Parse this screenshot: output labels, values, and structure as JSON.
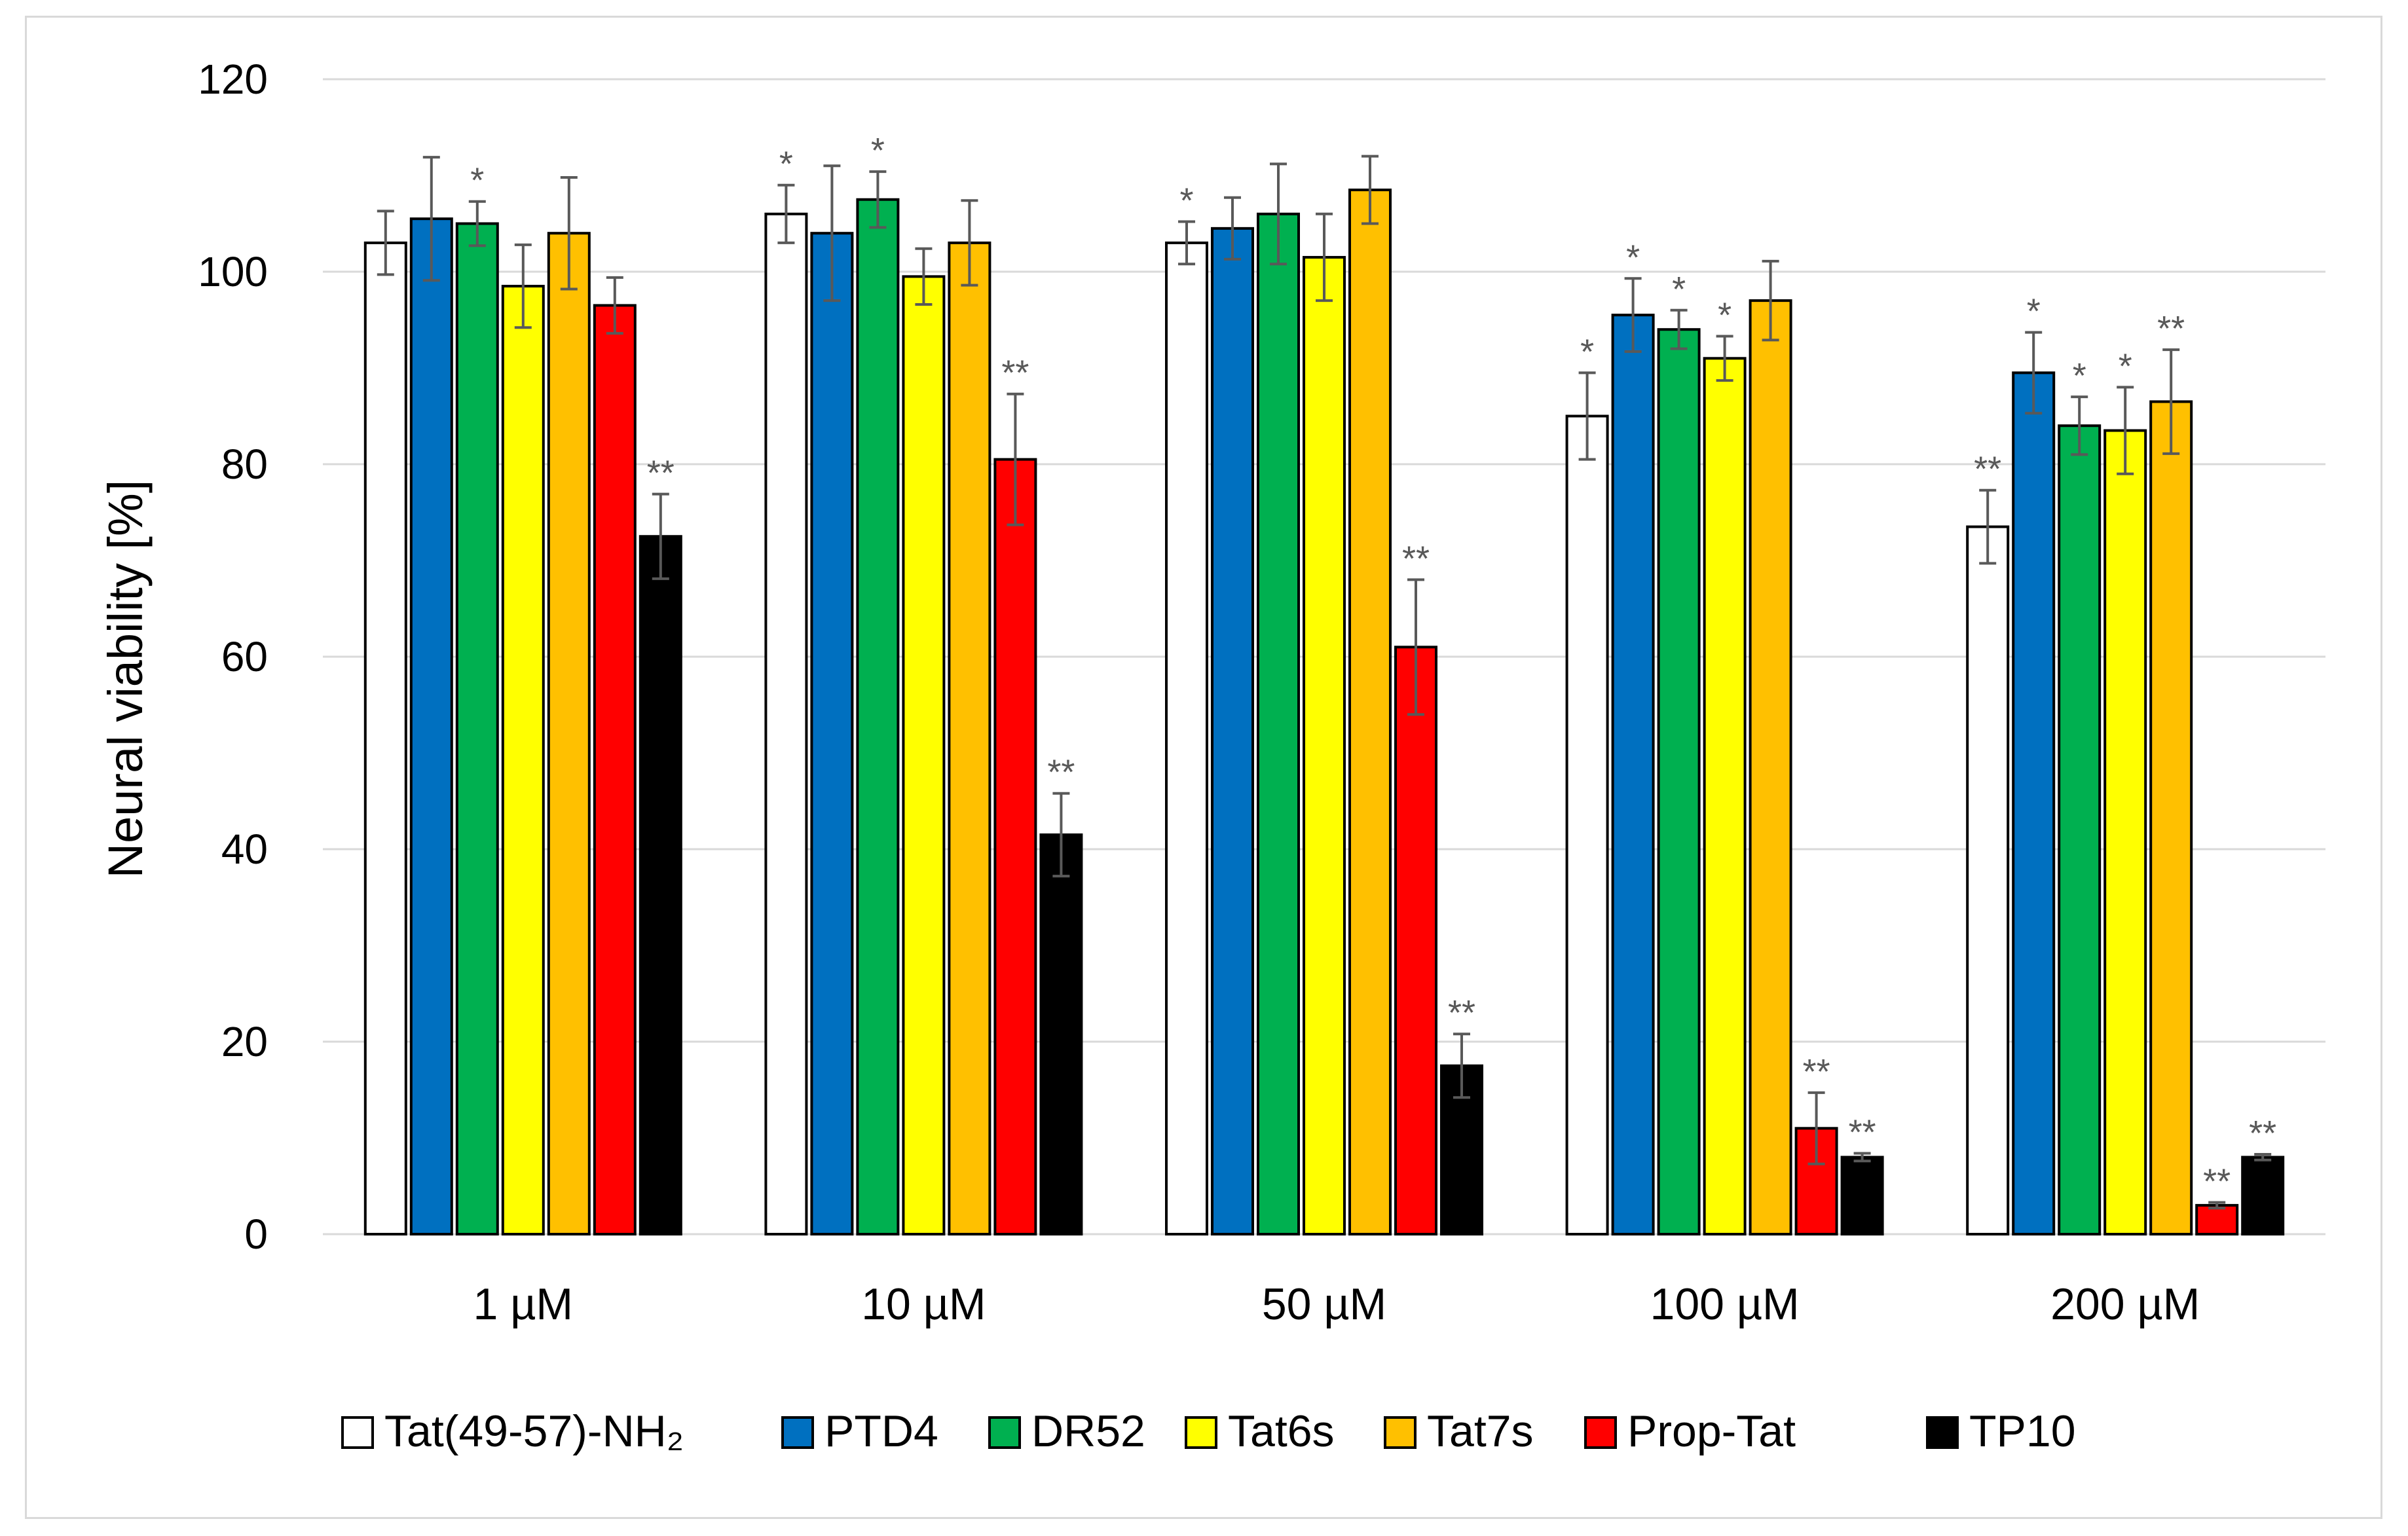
{
  "chart_data": {
    "type": "bar",
    "title": "",
    "xlabel": "",
    "ylabel": "Neural viability [%]",
    "ylim": [
      0,
      120
    ],
    "yticks": [
      0,
      20,
      40,
      60,
      80,
      100,
      120
    ],
    "grid": "horizontal",
    "legend_position": "bottom",
    "categories": [
      "1 µM",
      "10 µM",
      "50 µM",
      "100 µM",
      "200 µM"
    ],
    "series": [
      {
        "name": "Tat(49-57)-NH₂",
        "color": "#ffffff",
        "values": [
          103,
          106,
          103,
          85,
          73.5
        ],
        "errors": [
          3.3,
          3,
          2.2,
          4.5,
          3.8
        ],
        "significance": [
          "",
          "*",
          "*",
          "*",
          "**"
        ]
      },
      {
        "name": "PTD4",
        "color": "#0070c0",
        "values": [
          105.5,
          104,
          104.5,
          95.5,
          89.5
        ],
        "errors": [
          6.4,
          7,
          3.2,
          3.8,
          4.2
        ],
        "significance": [
          "",
          "",
          "",
          "*",
          "*"
        ]
      },
      {
        "name": "DR52",
        "color": "#00b050",
        "values": [
          105,
          107.5,
          106,
          94,
          84
        ],
        "errors": [
          2.3,
          2.9,
          5.2,
          2,
          3
        ],
        "significance": [
          "*",
          "*",
          "",
          "*",
          "*"
        ]
      },
      {
        "name": "Tat6s",
        "color": "#ffff00",
        "values": [
          98.5,
          99.5,
          101.5,
          91,
          83.5
        ],
        "errors": [
          4.3,
          2.9,
          4.5,
          2.3,
          4.5
        ],
        "significance": [
          "",
          "",
          "",
          "*",
          "*"
        ]
      },
      {
        "name": "Tat7s",
        "color": "#ffc000",
        "values": [
          104,
          103,
          108.5,
          97,
          86.5
        ],
        "errors": [
          5.8,
          4.4,
          3.5,
          4.1,
          5.4
        ],
        "significance": [
          "",
          "",
          "",
          "",
          "**"
        ]
      },
      {
        "name": "Prop-Tat",
        "color": "#ff0000",
        "values": [
          96.5,
          80.5,
          61,
          11,
          3
        ],
        "errors": [
          2.9,
          6.8,
          7,
          3.7,
          0.3
        ],
        "significance": [
          "",
          "**",
          "**",
          "**",
          "**"
        ]
      },
      {
        "name": "TP10",
        "color": "#000000",
        "values": [
          72.5,
          41.5,
          17.5,
          8,
          8
        ],
        "errors": [
          4.4,
          4.3,
          3.3,
          0.4,
          0.3
        ],
        "significance": [
          "**",
          "**",
          "**",
          "**",
          "**"
        ]
      }
    ]
  }
}
